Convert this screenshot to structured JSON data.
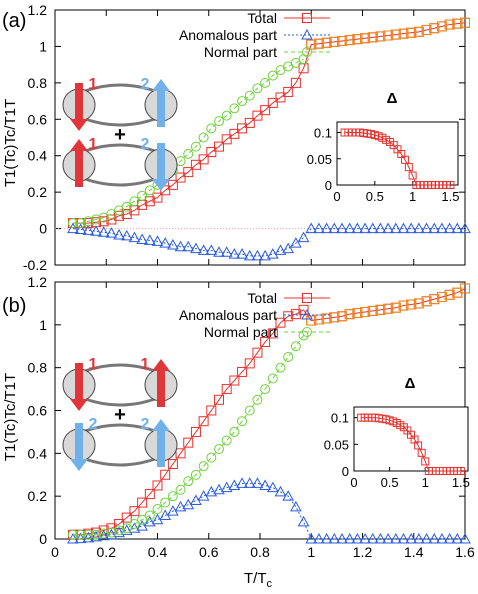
{
  "figure": {
    "xlabel": "T/T",
    "xlabel_sub": "c"
  },
  "colors": {
    "total": "#e8322e",
    "anomalous": "#2a5ce0",
    "normal": "#6fd13b",
    "orange": "#f08a1e",
    "red_arrow": "#e0363a",
    "blue_arrow": "#6fb1e8"
  },
  "chart_data": [
    {
      "panel": "(a)",
      "type": "line",
      "ylabel": "T1(Tc)Tc/T1T",
      "xlim": [
        0,
        1.6
      ],
      "ylim": [
        -0.2,
        1.2
      ],
      "xticks": [],
      "yticks": [
        "-0.2",
        "0",
        "0.2",
        "0.4",
        "0.6",
        "0.8",
        "1",
        "1.2"
      ],
      "legend": [
        "Total",
        "Anomalous part",
        "Normal part"
      ],
      "orbital_labels": [
        "1",
        "2",
        "1",
        "2"
      ],
      "plus": "+",
      "x": [
        0.07,
        0.1,
        0.13,
        0.16,
        0.19,
        0.22,
        0.25,
        0.28,
        0.31,
        0.34,
        0.37,
        0.4,
        0.43,
        0.46,
        0.49,
        0.52,
        0.55,
        0.58,
        0.61,
        0.64,
        0.67,
        0.7,
        0.73,
        0.76,
        0.79,
        0.82,
        0.85,
        0.88,
        0.91,
        0.94,
        0.97
      ],
      "series": [
        {
          "name": "Total",
          "values": [
            0.03,
            0.03,
            0.03,
            0.035,
            0.04,
            0.05,
            0.07,
            0.08,
            0.1,
            0.13,
            0.15,
            0.17,
            0.21,
            0.24,
            0.28,
            0.31,
            0.35,
            0.38,
            0.42,
            0.45,
            0.49,
            0.52,
            0.55,
            0.58,
            0.62,
            0.65,
            0.69,
            0.72,
            0.75,
            0.8,
            0.88
          ]
        },
        {
          "name": "Anomalous part",
          "values": [
            0,
            -0.005,
            -0.01,
            -0.015,
            -0.02,
            -0.025,
            -0.035,
            -0.04,
            -0.05,
            -0.06,
            -0.065,
            -0.07,
            -0.08,
            -0.09,
            -0.1,
            -0.1,
            -0.11,
            -0.12,
            -0.12,
            -0.13,
            -0.13,
            -0.14,
            -0.14,
            -0.15,
            -0.15,
            -0.15,
            -0.14,
            -0.12,
            -0.11,
            -0.08,
            -0.05
          ]
        },
        {
          "name": "Normal part",
          "values": [
            0.03,
            0.03,
            0.04,
            0.05,
            0.06,
            0.08,
            0.1,
            0.12,
            0.15,
            0.18,
            0.21,
            0.24,
            0.28,
            0.32,
            0.37,
            0.41,
            0.45,
            0.5,
            0.55,
            0.59,
            0.62,
            0.66,
            0.7,
            0.73,
            0.77,
            0.8,
            0.84,
            0.87,
            0.89,
            0.91,
            0.93
          ]
        }
      ],
      "above_tc": {
        "x": [
          1.0,
          1.03,
          1.06,
          1.09,
          1.12,
          1.15,
          1.18,
          1.21,
          1.24,
          1.27,
          1.3,
          1.33,
          1.36,
          1.39,
          1.42,
          1.45,
          1.48,
          1.51,
          1.54,
          1.57,
          1.6
        ],
        "total": [
          1.01,
          1.015,
          1.02,
          1.025,
          1.03,
          1.035,
          1.04,
          1.045,
          1.05,
          1.055,
          1.06,
          1.065,
          1.07,
          1.075,
          1.08,
          1.09,
          1.1,
          1.11,
          1.12,
          1.125,
          1.13
        ],
        "anomalous": [
          0,
          0,
          0,
          0,
          0,
          0,
          0,
          0,
          0,
          0,
          0,
          0,
          0,
          0,
          0,
          0,
          0,
          0,
          0,
          0,
          0
        ]
      },
      "inset": {
        "title": "Δ",
        "xlim": [
          0,
          1.6
        ],
        "ylim": [
          0,
          0.12
        ],
        "xticks": [
          "0",
          "0.5",
          "1",
          "1.5"
        ],
        "yticks": [
          "0",
          "0.05",
          "0.1"
        ],
        "x": [
          0.1,
          0.15,
          0.2,
          0.25,
          0.3,
          0.35,
          0.4,
          0.45,
          0.5,
          0.55,
          0.6,
          0.65,
          0.7,
          0.75,
          0.8,
          0.85,
          0.9,
          0.95,
          1.0,
          1.05,
          1.1,
          1.15,
          1.2,
          1.25,
          1.3,
          1.35,
          1.4,
          1.45,
          1.5
        ],
        "values": [
          0.1,
          0.1,
          0.1,
          0.1,
          0.1,
          0.099,
          0.098,
          0.097,
          0.095,
          0.093,
          0.09,
          0.086,
          0.082,
          0.076,
          0.068,
          0.059,
          0.048,
          0.034,
          0.018,
          0,
          0,
          0,
          0,
          0,
          0,
          0,
          0,
          0,
          0
        ]
      }
    },
    {
      "panel": "(b)",
      "type": "line",
      "ylabel": "T1(Tc)Tc/T1T",
      "xlim": [
        0,
        1.6
      ],
      "ylim": [
        0,
        1.2
      ],
      "xticks": [
        "0",
        "0.2",
        "0.4",
        "0.6",
        "0.8",
        "1",
        "1.2",
        "1.4",
        "1.6"
      ],
      "yticks": [
        "0",
        "0.2",
        "0.4",
        "0.6",
        "0.8",
        "1",
        "1.2"
      ],
      "legend": [
        "Total",
        "Anomalous part",
        "Normal part"
      ],
      "orbital_labels": [
        "1",
        "1",
        "2",
        "2"
      ],
      "plus": "+",
      "x": [
        0.07,
        0.1,
        0.13,
        0.16,
        0.19,
        0.22,
        0.25,
        0.28,
        0.31,
        0.34,
        0.37,
        0.4,
        0.43,
        0.46,
        0.49,
        0.52,
        0.55,
        0.58,
        0.61,
        0.64,
        0.67,
        0.7,
        0.73,
        0.76,
        0.79,
        0.82,
        0.85,
        0.88,
        0.91,
        0.94,
        0.97
      ],
      "series": [
        {
          "name": "Total",
          "values": [
            0.02,
            0.02,
            0.025,
            0.03,
            0.04,
            0.05,
            0.07,
            0.1,
            0.13,
            0.17,
            0.21,
            0.25,
            0.3,
            0.35,
            0.4,
            0.45,
            0.5,
            0.55,
            0.6,
            0.65,
            0.7,
            0.74,
            0.78,
            0.82,
            0.87,
            0.92,
            0.96,
            1.01,
            1.04,
            1.05,
            1.07
          ]
        },
        {
          "name": "Anomalous part",
          "values": [
            0,
            0.002,
            0.005,
            0.01,
            0.015,
            0.02,
            0.03,
            0.04,
            0.05,
            0.06,
            0.08,
            0.09,
            0.11,
            0.13,
            0.15,
            0.16,
            0.18,
            0.2,
            0.22,
            0.23,
            0.24,
            0.25,
            0.26,
            0.26,
            0.26,
            0.25,
            0.24,
            0.22,
            0.2,
            0.15,
            0.08
          ]
        },
        {
          "name": "Normal part",
          "values": [
            0.02,
            0.02,
            0.02,
            0.02,
            0.025,
            0.03,
            0.04,
            0.05,
            0.07,
            0.09,
            0.11,
            0.14,
            0.17,
            0.2,
            0.23,
            0.27,
            0.3,
            0.34,
            0.38,
            0.42,
            0.46,
            0.5,
            0.55,
            0.6,
            0.65,
            0.7,
            0.75,
            0.8,
            0.85,
            0.9,
            0.95
          ]
        }
      ],
      "above_tc": {
        "x": [
          1.0,
          1.03,
          1.06,
          1.09,
          1.12,
          1.15,
          1.18,
          1.21,
          1.24,
          1.27,
          1.3,
          1.33,
          1.36,
          1.39,
          1.42,
          1.45,
          1.48,
          1.51,
          1.54,
          1.57,
          1.6
        ],
        "total": [
          1.02,
          1.025,
          1.03,
          1.035,
          1.04,
          1.05,
          1.055,
          1.06,
          1.065,
          1.07,
          1.075,
          1.08,
          1.09,
          1.095,
          1.1,
          1.11,
          1.12,
          1.13,
          1.14,
          1.15,
          1.17
        ],
        "anomalous": [
          0,
          0,
          0,
          0,
          0,
          0,
          0,
          0,
          0,
          0,
          0,
          0,
          0,
          0,
          0,
          0,
          0,
          0,
          0,
          0,
          0
        ]
      },
      "inset": {
        "title": "Δ",
        "xlim": [
          0,
          1.6
        ],
        "ylim": [
          0,
          0.12
        ],
        "xticks": [
          "0",
          "0.5",
          "1",
          "1.5"
        ],
        "yticks": [
          "0",
          "0.05",
          "0.1"
        ],
        "x": [
          0.1,
          0.15,
          0.2,
          0.25,
          0.3,
          0.35,
          0.4,
          0.45,
          0.5,
          0.55,
          0.6,
          0.65,
          0.7,
          0.75,
          0.8,
          0.85,
          0.9,
          0.95,
          1.0,
          1.05,
          1.1,
          1.15,
          1.2,
          1.25,
          1.3,
          1.35,
          1.4,
          1.45,
          1.5
        ],
        "values": [
          0.1,
          0.1,
          0.1,
          0.1,
          0.1,
          0.099,
          0.098,
          0.097,
          0.095,
          0.093,
          0.09,
          0.086,
          0.082,
          0.076,
          0.068,
          0.059,
          0.048,
          0.034,
          0.018,
          0,
          0,
          0,
          0,
          0,
          0,
          0,
          0,
          0,
          0
        ]
      }
    }
  ]
}
